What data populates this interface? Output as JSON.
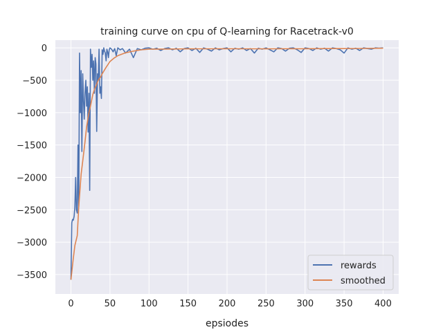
{
  "chart_data": {
    "type": "line",
    "title": "training curve on cpu of Q-learning for Racetrack-v0",
    "xlabel": "epsiodes",
    "ylabel": "",
    "xlim": [
      -20,
      420
    ],
    "ylim": [
      -3800,
      120
    ],
    "xticks": [
      0,
      50,
      100,
      150,
      200,
      250,
      300,
      350,
      400
    ],
    "yticks": [
      0,
      -500,
      -1000,
      -1500,
      -2000,
      -2500,
      -3000,
      -3500
    ],
    "grid": true,
    "legend": "bottom-right",
    "background": "#eaeaf2",
    "series": [
      {
        "name": "rewards",
        "color": "#4c72b0",
        "x": [
          0,
          1,
          2,
          3,
          4,
          5,
          6,
          7,
          8,
          9,
          10,
          11,
          12,
          13,
          14,
          15,
          16,
          17,
          18,
          19,
          20,
          21,
          22,
          23,
          24,
          25,
          26,
          27,
          28,
          29,
          30,
          31,
          32,
          33,
          34,
          35,
          36,
          37,
          38,
          39,
          40,
          41,
          42,
          43,
          44,
          45,
          46,
          47,
          48,
          49,
          50,
          52,
          54,
          56,
          58,
          60,
          63,
          66,
          70,
          75,
          80,
          85,
          90,
          95,
          100,
          105,
          110,
          115,
          120,
          125,
          130,
          135,
          140,
          145,
          150,
          155,
          160,
          165,
          170,
          175,
          180,
          185,
          190,
          195,
          200,
          205,
          210,
          215,
          220,
          225,
          230,
          235,
          240,
          245,
          250,
          255,
          260,
          265,
          270,
          275,
          280,
          285,
          290,
          295,
          300,
          305,
          310,
          315,
          320,
          325,
          330,
          335,
          340,
          345,
          350,
          355,
          360,
          365,
          370,
          375,
          380,
          385,
          390,
          395,
          400
        ],
        "y": [
          -3580,
          -2700,
          -2650,
          -2660,
          -2600,
          -2450,
          -2000,
          -2500,
          -2550,
          -1500,
          -2450,
          -80,
          -1000,
          -350,
          -1600,
          -400,
          -800,
          -1100,
          -700,
          -500,
          -900,
          -600,
          -1300,
          -700,
          -2200,
          -20,
          -300,
          -100,
          -500,
          -200,
          -700,
          -150,
          -250,
          -1290,
          -400,
          -500,
          -20,
          -700,
          -600,
          -780,
          -30,
          -100,
          0,
          -50,
          -80,
          -200,
          -20,
          -60,
          -150,
          -30,
          0,
          -20,
          -60,
          -10,
          -120,
          0,
          -30,
          -10,
          -80,
          -20,
          -150,
          -10,
          -30,
          -5,
          0,
          -20,
          -5,
          -40,
          -10,
          0,
          -30,
          -5,
          -60,
          -10,
          0,
          -40,
          -5,
          -70,
          0,
          -20,
          -50,
          0,
          -30,
          -10,
          0,
          -60,
          -5,
          -20,
          0,
          -40,
          -10,
          -80,
          -5,
          -20,
          0,
          -30,
          -60,
          0,
          -10,
          -50,
          -5,
          0,
          -30,
          -70,
          0,
          -10,
          -40,
          0,
          -20,
          -5,
          -50,
          0,
          -10,
          -30,
          -80,
          0,
          -20,
          -5,
          -40,
          0,
          -10,
          -20,
          0,
          -5,
          0
        ]
      },
      {
        "name": "smoothed",
        "color": "#dd8452",
        "x": [
          0,
          3,
          5,
          8,
          10,
          13,
          15,
          18,
          20,
          23,
          25,
          28,
          30,
          33,
          35,
          38,
          40,
          45,
          50,
          55,
          60,
          70,
          80,
          90,
          100,
          125,
          150,
          175,
          200,
          225,
          250,
          275,
          300,
          325,
          350,
          375,
          400
        ],
        "y": [
          -3580,
          -3250,
          -3050,
          -2900,
          -2450,
          -1950,
          -1750,
          -1450,
          -1220,
          -1000,
          -900,
          -720,
          -640,
          -560,
          -500,
          -450,
          -400,
          -300,
          -210,
          -160,
          -120,
          -75,
          -50,
          -30,
          -20,
          -18,
          -15,
          -14,
          -12,
          -14,
          -15,
          -12,
          -12,
          -10,
          -10,
          -8,
          -5
        ]
      }
    ]
  }
}
